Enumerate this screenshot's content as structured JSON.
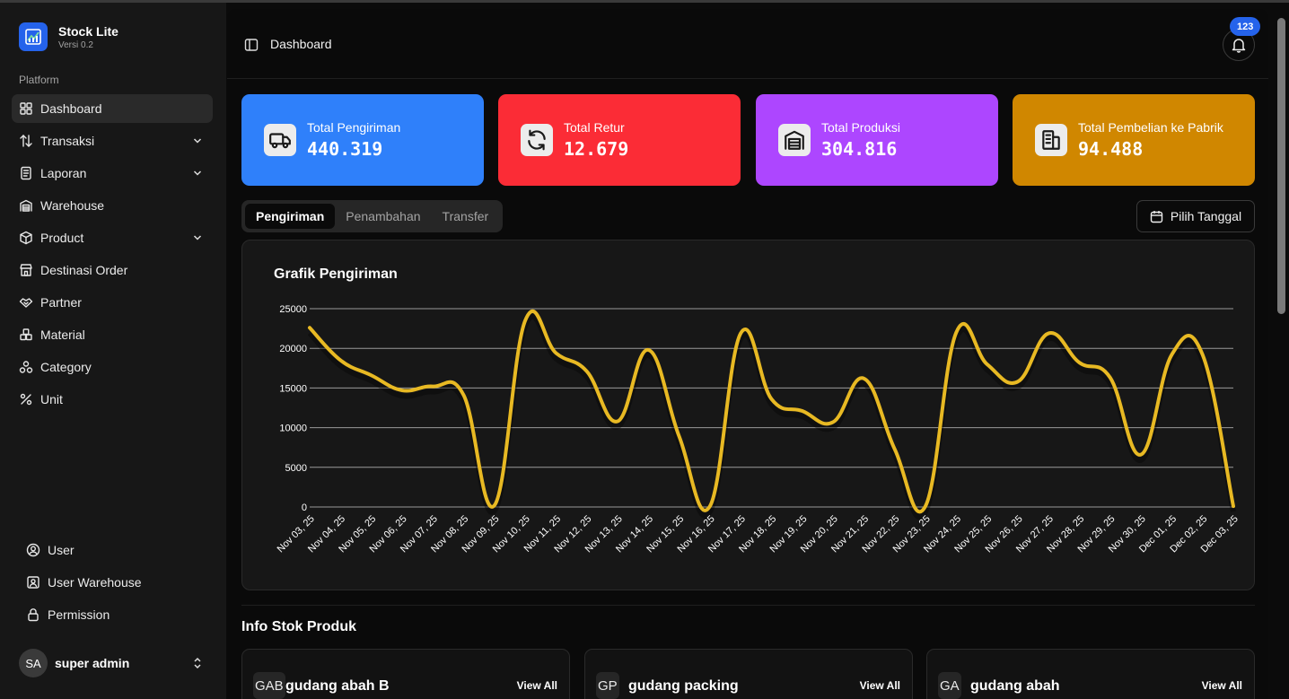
{
  "brand": {
    "name": "Stock Lite",
    "version": "Versi 0.2"
  },
  "sidebar": {
    "section_label": "Platform",
    "items": [
      {
        "label": "Dashboard",
        "icon": "grid-icon",
        "active": true,
        "has_chevron": false
      },
      {
        "label": "Transaksi",
        "icon": "arrows-icon",
        "has_chevron": true
      },
      {
        "label": "Laporan",
        "icon": "report-icon",
        "has_chevron": true
      },
      {
        "label": "Warehouse",
        "icon": "warehouse-icon",
        "has_chevron": false
      },
      {
        "label": "Product",
        "icon": "package-icon",
        "has_chevron": true
      },
      {
        "label": "Destinasi Order",
        "icon": "store-icon",
        "has_chevron": false
      },
      {
        "label": "Partner",
        "icon": "handshake-icon",
        "has_chevron": false
      },
      {
        "label": "Material",
        "icon": "boxes-icon",
        "has_chevron": false
      },
      {
        "label": "Category",
        "icon": "shapes-icon",
        "has_chevron": false
      },
      {
        "label": "Unit",
        "icon": "percent-icon",
        "has_chevron": false
      }
    ],
    "bottom_items": [
      {
        "label": "User",
        "icon": "user-circle-icon"
      },
      {
        "label": "User Warehouse",
        "icon": "user-square-icon"
      },
      {
        "label": "Permission",
        "icon": "lock-icon"
      }
    ],
    "user": {
      "initials": "SA",
      "name": "super admin"
    }
  },
  "header": {
    "breadcrumb": "Dashboard",
    "notification_count": "123"
  },
  "stats": [
    {
      "label": "Total Pengiriman",
      "value": "440.319",
      "color": "#2f80fa",
      "icon": "truck-icon"
    },
    {
      "label": "Total Retur",
      "value": "12.679",
      "color": "#fb2c36",
      "icon": "refresh-icon"
    },
    {
      "label": "Total Produksi",
      "value": "304.816",
      "color": "#ad46ff",
      "icon": "warehouse-icon"
    },
    {
      "label": "Total Pembelian ke Pabrik",
      "value": "94.488",
      "color": "#d08700",
      "icon": "building-icon"
    }
  ],
  "tabs": [
    {
      "label": "Pengiriman",
      "active": true
    },
    {
      "label": "Penambahan",
      "active": false
    },
    {
      "label": "Transfer",
      "active": false
    }
  ],
  "date_button": {
    "label": "Pilih Tanggal"
  },
  "chart_data": {
    "type": "line",
    "title": "Grafik Pengiriman",
    "xlabel": "",
    "ylabel": "",
    "ylim": [
      0,
      25000
    ],
    "yticks": [
      0,
      5000,
      10000,
      15000,
      20000,
      25000
    ],
    "grid": true,
    "line_color": "#e8b923",
    "categories": [
      "Nov 03, 25",
      "Nov 04, 25",
      "Nov 05, 25",
      "Nov 06, 25",
      "Nov 07, 25",
      "Nov 08, 25",
      "Nov 09, 25",
      "Nov 10, 25",
      "Nov 11, 25",
      "Nov 12, 25",
      "Nov 13, 25",
      "Nov 14, 25",
      "Nov 15, 25",
      "Nov 16, 25",
      "Nov 17, 25",
      "Nov 18, 25",
      "Nov 19, 25",
      "Nov 20, 25",
      "Nov 21, 25",
      "Nov 22, 25",
      "Nov 23, 25",
      "Nov 24, 25",
      "Nov 25, 25",
      "Nov 26, 25",
      "Nov 27, 25",
      "Nov 28, 25",
      "Nov 29, 25",
      "Nov 30, 25",
      "Dec 01, 25",
      "Dec 02, 25",
      "Dec 03, 25"
    ],
    "values": [
      22600,
      18500,
      16600,
      14700,
      15200,
      14100,
      200,
      23500,
      19400,
      17100,
      10800,
      19800,
      8900,
      100,
      21900,
      13600,
      12100,
      10700,
      16200,
      7300,
      100,
      22000,
      18000,
      15800,
      21900,
      18200,
      16300,
      6600,
      19200,
      19200,
      100
    ]
  },
  "stock_section": {
    "title": "Info Stok Produk",
    "warehouses": [
      {
        "initials": "GAB",
        "name": "gudang abah B",
        "view_all": "View All"
      },
      {
        "initials": "GP",
        "name": "gudang packing",
        "view_all": "View All"
      },
      {
        "initials": "GA",
        "name": "gudang abah",
        "view_all": "View All"
      }
    ]
  }
}
